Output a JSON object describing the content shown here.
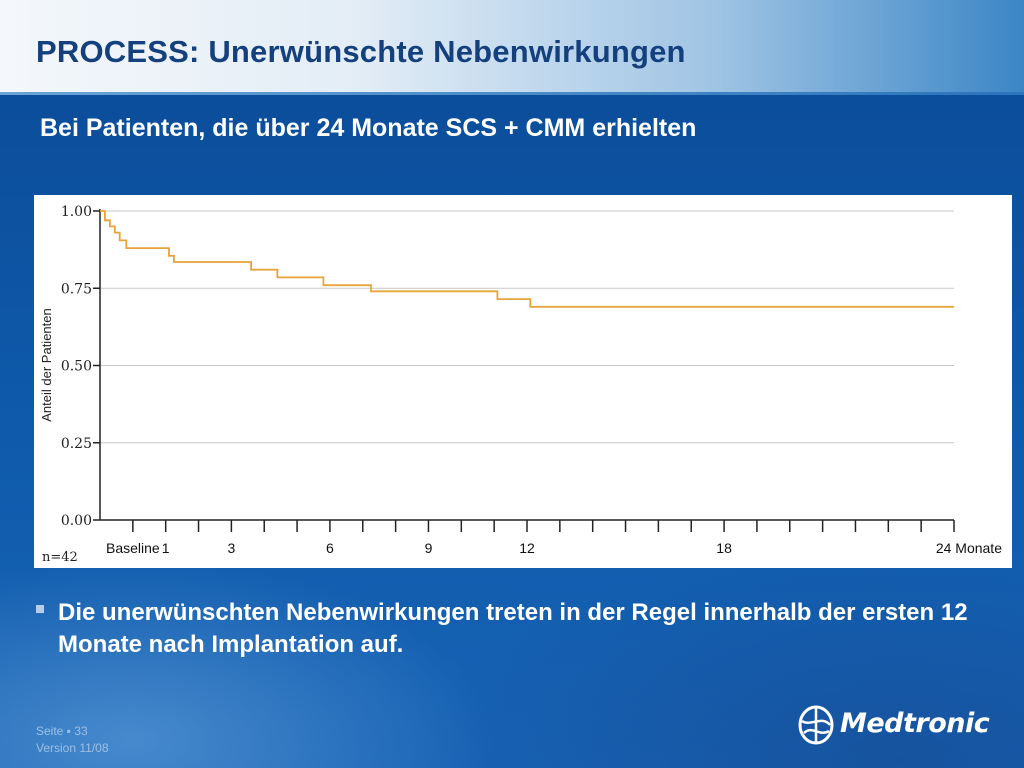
{
  "slide": {
    "title": "PROCESS: Unerwünschte Nebenwirkungen",
    "subtitle": "Bei Patienten, die über 24 Monate SCS + CMM erhielten",
    "bullet": "Die unerwünschten Nebenwirkungen treten in der Regel innerhalb der ersten 12 Monate nach Implantation auf.",
    "footer_page": "Seite ▪ 33",
    "footer_version": "Version 11/08",
    "logo_text": "Medtronic"
  },
  "colors": {
    "background": "#0d4f9c",
    "title": "#14407e",
    "curve": "#e8a33a",
    "grid": "#c8c8c8"
  },
  "chart_data": {
    "type": "line",
    "subtype": "kaplan-meier step",
    "title": "",
    "xlabel": "",
    "ylabel": "Anteil der Patienten",
    "n_label": "n=42",
    "xlim": [
      -2,
      24
    ],
    "ylim": [
      0,
      1
    ],
    "y_ticks": [
      0,
      0.25,
      0.5,
      0.75,
      1
    ],
    "y_tick_labels": [
      "0.00",
      "0.25",
      "0.50",
      "0.75",
      "1.00"
    ],
    "x_ticks": [
      -1,
      0,
      1,
      2,
      3,
      4,
      5,
      6,
      7,
      8,
      9,
      10,
      11,
      12,
      13,
      14,
      15,
      16,
      17,
      18,
      19,
      20,
      21,
      22,
      23,
      24
    ],
    "x_tick_labels": [
      {
        "x": -1,
        "label": "Baseline"
      },
      {
        "x": 0,
        "label": "1"
      },
      {
        "x": 2,
        "label": "3"
      },
      {
        "x": 5,
        "label": "6"
      },
      {
        "x": 8,
        "label": "9"
      },
      {
        "x": 11,
        "label": "12"
      },
      {
        "x": 17,
        "label": "18"
      },
      {
        "x": 23,
        "label": "24 Monate"
      }
    ],
    "grid": true,
    "series": [
      {
        "points": [
          [
            -2,
            1.0
          ],
          [
            -1.85,
            0.97
          ],
          [
            -1.7,
            0.95
          ],
          [
            -1.55,
            0.93
          ],
          [
            -1.4,
            0.905
          ],
          [
            -1.2,
            0.88
          ],
          [
            0.1,
            0.855
          ],
          [
            0.25,
            0.835
          ],
          [
            2.6,
            0.81
          ],
          [
            3.4,
            0.785
          ],
          [
            4.8,
            0.76
          ],
          [
            6.25,
            0.74
          ],
          [
            10.1,
            0.715
          ],
          [
            11.1,
            0.69
          ],
          [
            24,
            0.69
          ]
        ]
      }
    ]
  }
}
